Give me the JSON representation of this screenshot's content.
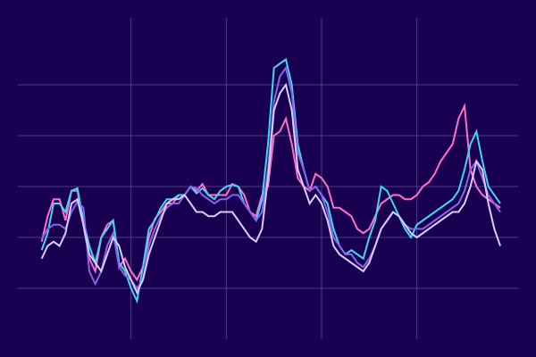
{
  "colors": {
    "background": "#1a0050",
    "grid": "#4b3d86"
  },
  "chart_data": {
    "type": "line",
    "title": "",
    "xlabel": "",
    "ylabel": "",
    "grid": true,
    "axes_visible": false,
    "legend": "none",
    "x": [
      0,
      1,
      2,
      3,
      4,
      5,
      6,
      7,
      8,
      9,
      10,
      11,
      12,
      13,
      14,
      15,
      16,
      17,
      18,
      19,
      20,
      21,
      22,
      23,
      24,
      25,
      26,
      27,
      28,
      29,
      30,
      31,
      32,
      33,
      34,
      35,
      36,
      37,
      38,
      39,
      40,
      41,
      42,
      43,
      44,
      45,
      46,
      47,
      48,
      49,
      50,
      51,
      52,
      53,
      54,
      55,
      56,
      57,
      58,
      59,
      60,
      61,
      62,
      63,
      64,
      65,
      66,
      67,
      68,
      69,
      70,
      71,
      72,
      73,
      74,
      75,
      76,
      77
    ],
    "xlim": [
      -4,
      80
    ],
    "ylim": [
      0,
      400
    ],
    "x_grid": [
      15,
      31,
      47,
      63
    ],
    "y_grid": [
      60,
      120,
      180,
      240,
      300
    ],
    "series": [
      {
        "color": "#ff6fc8",
        "values": [
          115,
          145,
          165,
          165,
          140,
          175,
          175,
          135,
          95,
          80,
          120,
          135,
          140,
          85,
          95,
          80,
          70,
          85,
          120,
          142,
          150,
          160,
          160,
          170,
          170,
          180,
          175,
          183,
          170,
          170,
          170,
          170,
          183,
          180,
          170,
          150,
          145,
          170,
          180,
          240,
          245,
          260,
          230,
          190,
          180,
          175,
          195,
          190,
          180,
          155,
          155,
          150,
          145,
          130,
          125,
          130,
          145,
          160,
          165,
          170,
          170,
          165,
          165,
          170,
          180,
          185,
          195,
          210,
          220,
          230,
          260,
          275,
          200,
          180,
          170,
          165,
          160,
          155
        ]
      },
      {
        "color": "#3fd6f0",
        "values": [
          105,
          125,
          160,
          160,
          150,
          175,
          178,
          140,
          110,
          90,
          120,
          130,
          140,
          90,
          80,
          60,
          45,
          85,
          130,
          140,
          155,
          165,
          165,
          170,
          170,
          180,
          172,
          178,
          170,
          165,
          175,
          180,
          182,
          180,
          160,
          150,
          140,
          165,
          230,
          320,
          325,
          330,
          300,
          230,
          200,
          175,
          180,
          170,
          160,
          130,
          110,
          100,
          105,
          100,
          95,
          120,
          140,
          180,
          175,
          160,
          145,
          130,
          120,
          135,
          140,
          145,
          150,
          155,
          160,
          165,
          175,
          200,
          230,
          245,
          210,
          180,
          170,
          160
        ]
      },
      {
        "color": "#8a62ea",
        "values": [
          118,
          130,
          135,
          135,
          130,
          150,
          162,
          155,
          80,
          65,
          80,
          110,
          125,
          85,
          75,
          70,
          60,
          70,
          110,
          130,
          145,
          155,
          160,
          160,
          170,
          180,
          178,
          170,
          165,
          160,
          165,
          165,
          170,
          170,
          160,
          150,
          140,
          150,
          200,
          280,
          310,
          320,
          290,
          220,
          200,
          175,
          180,
          170,
          150,
          120,
          110,
          100,
          100,
          90,
          85,
          95,
          110,
          130,
          140,
          150,
          145,
          135,
          130,
          130,
          130,
          135,
          140,
          145,
          150,
          155,
          160,
          175,
          200,
          210,
          190,
          170,
          160,
          150
        ]
      },
      {
        "color": "#d8ccff",
        "values": [
          95,
          110,
          115,
          110,
          125,
          160,
          165,
          135,
          100,
          90,
          80,
          100,
          120,
          110,
          85,
          70,
          55,
          70,
          100,
          120,
          140,
          160,
          165,
          165,
          170,
          160,
          150,
          150,
          145,
          145,
          150,
          150,
          150,
          140,
          130,
          120,
          115,
          130,
          190,
          270,
          290,
          300,
          270,
          200,
          180,
          160,
          170,
          160,
          140,
          110,
          100,
          95,
          90,
          85,
          80,
          90,
          110,
          130,
          140,
          150,
          145,
          135,
          125,
          120,
          125,
          130,
          135,
          140,
          145,
          150,
          150,
          160,
          180,
          210,
          200,
          160,
          130,
          110
        ]
      }
    ]
  }
}
